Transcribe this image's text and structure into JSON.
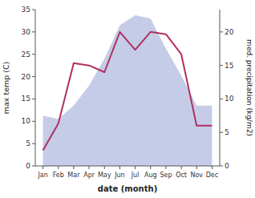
{
  "chart_data": {
    "type": "line",
    "categories": [
      "Jan",
      "Feb",
      "Mar",
      "Apr",
      "May",
      "Jun",
      "Jul",
      "Aug",
      "Sep",
      "Oct",
      "Nov",
      "Dec"
    ],
    "series": [
      {
        "type": "area",
        "axis": "y2",
        "color": "#c5cce8",
        "values": [
          7.5,
          7.0,
          9.0,
          12.0,
          16.0,
          21.0,
          22.5,
          22.0,
          17.5,
          13.5,
          9.0,
          9.0
        ]
      },
      {
        "type": "line",
        "color": "#b03060",
        "values": [
          3.5,
          9.5,
          23.0,
          22.5,
          21.0,
          30.0,
          26.0,
          30.0,
          29.5,
          25.0,
          9.0,
          9.0
        ]
      }
    ],
    "xlabel": "date (month)",
    "ylabel": "max temp (C)",
    "y2label": "med. precipitation (kg/m2)",
    "ylim": [
      0,
      35
    ],
    "yticks": [
      0,
      5,
      10,
      15,
      20,
      25,
      30,
      35
    ],
    "y2lim": [
      0,
      23.33
    ],
    "y2ticks": [
      0,
      5,
      10,
      15,
      20
    ],
    "grid": false
  }
}
